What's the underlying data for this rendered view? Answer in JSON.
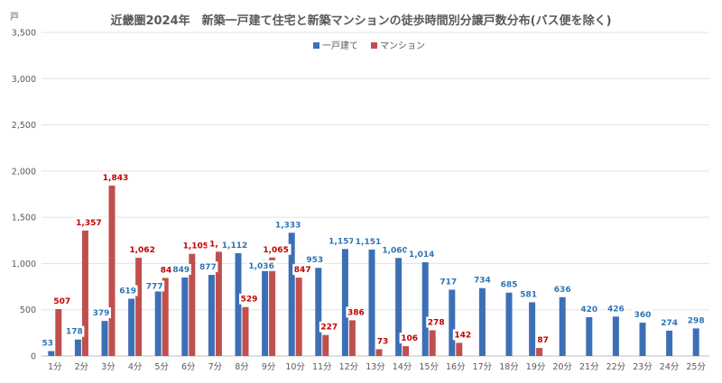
{
  "chart_data": {
    "type": "bar",
    "title": "近畿圏2024年　新築一戸建て住宅と新築マンションの徒歩時間別分譲戸数分布(バス便を除く)",
    "ylabel": "戸",
    "xlabel": "",
    "ylim": [
      0,
      3500
    ],
    "yticks": [
      "0",
      "500",
      "1,000",
      "1,500",
      "2,000",
      "2,500",
      "3,000",
      "3,500"
    ],
    "ytick_values": [
      0,
      500,
      1000,
      1500,
      2000,
      2500,
      3000,
      3500
    ],
    "grid": true,
    "legend_position": "top-center",
    "categories": [
      "1分",
      "2分",
      "3分",
      "4分",
      "5分",
      "6分",
      "7分",
      "8分",
      "9分",
      "10分",
      "11分",
      "12分",
      "13分",
      "14分",
      "15分",
      "16分",
      "17分",
      "18分",
      "19分",
      "20分",
      "21分",
      "22分",
      "23分",
      "24分",
      "25分"
    ],
    "series": [
      {
        "name": "一戸建て",
        "color": "#3d6fb6",
        "label_color": "#2e75b6",
        "values": [
          53,
          178,
          379,
          619,
          777,
          849,
          877,
          1112,
          1036,
          1333,
          953,
          1157,
          1151,
          1060,
          1014,
          717,
          734,
          685,
          581,
          636,
          420,
          426,
          360,
          274,
          298
        ],
        "labels": [
          "53",
          "178",
          "379",
          "619",
          "777",
          "849",
          "877",
          "1,112",
          "1,036",
          "1,333",
          "953",
          "1,157",
          "1,151",
          "1,060",
          "1,014",
          "717",
          "734",
          "685",
          "581",
          "636",
          "420",
          "426",
          "360",
          "274",
          "298"
        ]
      },
      {
        "name": "マンション",
        "color": "#c0504d",
        "label_color": "#c00000",
        "values": [
          507,
          1357,
          1843,
          1062,
          844,
          1105,
          1128,
          529,
          1065,
          847,
          227,
          386,
          73,
          106,
          278,
          142,
          null,
          null,
          87,
          null,
          null,
          null,
          null,
          null,
          null
        ],
        "labels": [
          "507",
          "1,357",
          "1,843",
          "1,062",
          "844",
          "1,105",
          "1,128",
          "529",
          "1,065",
          "847",
          "227",
          "386",
          "73",
          "106",
          "278",
          "142",
          "",
          "",
          "87",
          "",
          "",
          "",
          "",
          "",
          ""
        ]
      }
    ]
  }
}
